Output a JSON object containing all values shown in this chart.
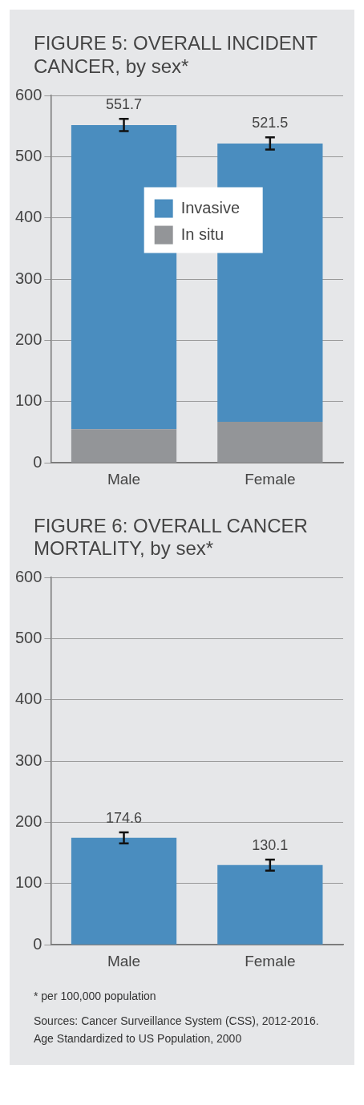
{
  "chart_data": [
    {
      "type": "bar",
      "title": "FIGURE 5: OVERALL INCIDENT CANCER, by sex*",
      "categories": [
        "Male",
        "Female"
      ],
      "stacked": true,
      "series": [
        {
          "name": "In situ",
          "color": "#939598",
          "values": [
            55,
            67
          ]
        },
        {
          "name": "Invasive",
          "color": "#4a8dbf",
          "values": [
            496.7,
            454.5
          ],
          "errors": [
            10,
            10
          ]
        }
      ],
      "totals": [
        "551.7",
        "521.5"
      ],
      "ylim": [
        0,
        600
      ],
      "yticks": [
        0,
        100,
        200,
        300,
        400,
        500,
        600
      ],
      "grid": "y",
      "legend": "top"
    },
    {
      "type": "bar",
      "title": "FIGURE 6: OVERALL CANCER MORTALITY, by sex*",
      "categories": [
        "Male",
        "Female"
      ],
      "series": [
        {
          "color": "#4a8dbf",
          "values": [
            174.6,
            130.1
          ],
          "errors": [
            9,
            9
          ]
        }
      ],
      "data_labels": true,
      "ylim": [
        0,
        600
      ],
      "yticks": [
        0,
        100,
        200,
        300,
        400,
        500,
        600
      ],
      "grid": "y",
      "legend": false,
      "annotations": [
        "* per 100,000 population",
        "Sources: Cancer Surveillance System (CSS), 2012-2016. Age Standardized to US Population, 2000"
      ]
    }
  ]
}
